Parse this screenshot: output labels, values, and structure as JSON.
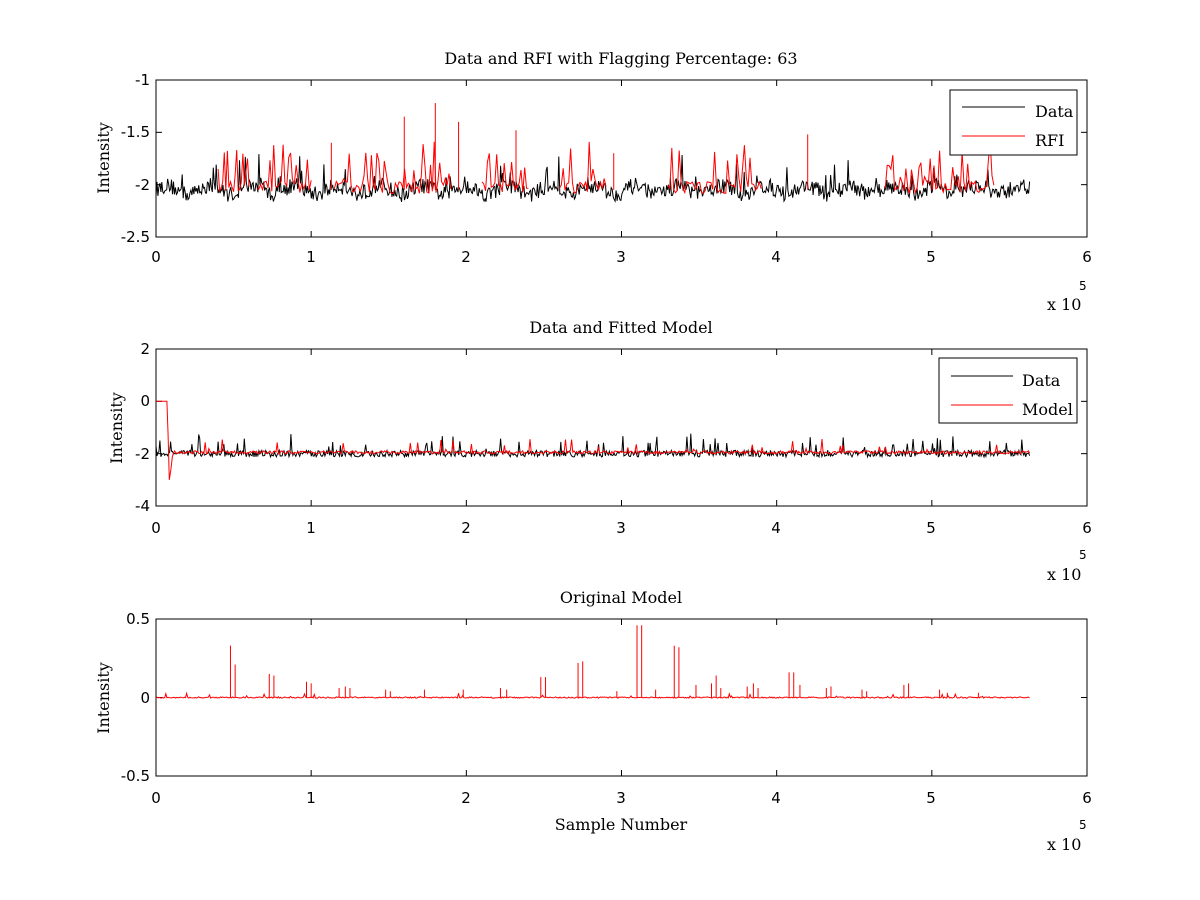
{
  "chart_data": [
    {
      "type": "line",
      "title": "Data and RFI with Flagging Percentage: 63",
      "xlabel": "",
      "ylabel": "Intensity",
      "xlim": [
        0,
        600000
      ],
      "ylim": [
        -2.5,
        -1
      ],
      "x_ticks": [
        0,
        1,
        2,
        3,
        4,
        5,
        6
      ],
      "x_tick_labels": [
        "0",
        "1",
        "2",
        "3",
        "4",
        "5",
        "6"
      ],
      "x_exponent_label": "x 10",
      "x_exponent_power": "5",
      "y_ticks": [
        -2.5,
        -2,
        -1.5,
        -1
      ],
      "y_tick_labels": [
        "-2.5",
        "-2",
        "-1.5",
        "-1"
      ],
      "grid": false,
      "legend_position": "top-right",
      "series": [
        {
          "name": "Data",
          "color": "#000000",
          "baseline": -2.05,
          "range": [
            0,
            563000
          ]
        },
        {
          "name": "RFI",
          "color": "#ff0000",
          "baseline": -2.05,
          "spikes": true,
          "range": [
            40000,
            540000
          ]
        }
      ],
      "rfi_segments": [
        [
          40000,
          60000
        ],
        [
          65000,
          100000
        ],
        [
          115000,
          190000
        ],
        [
          210000,
          240000
        ],
        [
          260000,
          290000
        ],
        [
          330000,
          390000
        ],
        [
          470000,
          540000
        ]
      ],
      "peaks": [
        {
          "x": 180000,
          "y": -1.22
        },
        {
          "x": 160000,
          "y": -1.35
        },
        {
          "x": 195000,
          "y": -1.4
        },
        {
          "x": 232000,
          "y": -1.48
        },
        {
          "x": 420000,
          "y": -1.52
        },
        {
          "x": 113000,
          "y": -1.6
        },
        {
          "x": 295000,
          "y": -1.7
        }
      ]
    },
    {
      "type": "line",
      "title": "Data and Fitted Model",
      "xlabel": "",
      "ylabel": "Intensity",
      "xlim": [
        0,
        600000
      ],
      "ylim": [
        -4,
        2
      ],
      "x_ticks": [
        0,
        1,
        2,
        3,
        4,
        5,
        6
      ],
      "x_tick_labels": [
        "0",
        "1",
        "2",
        "3",
        "4",
        "5",
        "6"
      ],
      "x_exponent_label": "x 10",
      "x_exponent_power": "5",
      "y_ticks": [
        -4,
        -2,
        0,
        2
      ],
      "y_tick_labels": [
        "-4",
        "-2",
        "0",
        "2"
      ],
      "grid": false,
      "legend_position": "top-right",
      "series": [
        {
          "name": "Data",
          "color": "#000000",
          "baseline": -2.0,
          "range": [
            0,
            563000
          ]
        },
        {
          "name": "Model",
          "color": "#ff0000",
          "baseline": -1.95,
          "initial_value": 0,
          "initial_until": 7000,
          "dip_min": -3.0,
          "range": [
            0,
            563000
          ]
        }
      ]
    },
    {
      "type": "line",
      "title": "Original Model",
      "xlabel": "Sample Number",
      "ylabel": "Intensity",
      "xlim": [
        0,
        600000
      ],
      "ylim": [
        -0.5,
        0.5
      ],
      "x_ticks": [
        0,
        1,
        2,
        3,
        4,
        5,
        6
      ],
      "x_tick_labels": [
        "0",
        "1",
        "2",
        "3",
        "4",
        "5",
        "6"
      ],
      "x_exponent_label": "x 10",
      "x_exponent_power": "5",
      "y_ticks": [
        -0.5,
        0,
        0.5
      ],
      "y_tick_labels": [
        "-0.5",
        "0",
        "0.5"
      ],
      "grid": false,
      "series": [
        {
          "color": "#ff0000",
          "baseline": 0.0,
          "range": [
            0,
            563000
          ]
        }
      ],
      "spikes": [
        {
          "x": 48000,
          "y": 0.33
        },
        {
          "x": 51000,
          "y": 0.21
        },
        {
          "x": 73000,
          "y": 0.15
        },
        {
          "x": 76000,
          "y": 0.14
        },
        {
          "x": 97000,
          "y": 0.1
        },
        {
          "x": 100000,
          "y": 0.09
        },
        {
          "x": 118000,
          "y": 0.06
        },
        {
          "x": 122000,
          "y": 0.07
        },
        {
          "x": 125000,
          "y": 0.06
        },
        {
          "x": 148000,
          "y": 0.05
        },
        {
          "x": 151000,
          "y": 0.04
        },
        {
          "x": 173000,
          "y": 0.05
        },
        {
          "x": 198000,
          "y": 0.05
        },
        {
          "x": 222000,
          "y": 0.06
        },
        {
          "x": 226000,
          "y": 0.05
        },
        {
          "x": 248000,
          "y": 0.13
        },
        {
          "x": 251000,
          "y": 0.13
        },
        {
          "x": 272000,
          "y": 0.22
        },
        {
          "x": 275000,
          "y": 0.23
        },
        {
          "x": 297000,
          "y": 0.04
        },
        {
          "x": 310000,
          "y": 0.46
        },
        {
          "x": 313000,
          "y": 0.46
        },
        {
          "x": 322000,
          "y": 0.05
        },
        {
          "x": 334000,
          "y": 0.33
        },
        {
          "x": 337000,
          "y": 0.32
        },
        {
          "x": 348000,
          "y": 0.08
        },
        {
          "x": 358000,
          "y": 0.09
        },
        {
          "x": 361000,
          "y": 0.14
        },
        {
          "x": 364000,
          "y": 0.06
        },
        {
          "x": 381000,
          "y": 0.07
        },
        {
          "x": 385000,
          "y": 0.09
        },
        {
          "x": 388000,
          "y": 0.06
        },
        {
          "x": 408000,
          "y": 0.16
        },
        {
          "x": 411000,
          "y": 0.16
        },
        {
          "x": 415000,
          "y": 0.08
        },
        {
          "x": 432000,
          "y": 0.06
        },
        {
          "x": 435000,
          "y": 0.07
        },
        {
          "x": 455000,
          "y": 0.05
        },
        {
          "x": 458000,
          "y": 0.04
        },
        {
          "x": 482000,
          "y": 0.08
        },
        {
          "x": 485000,
          "y": 0.09
        },
        {
          "x": 505000,
          "y": 0.05
        },
        {
          "x": 510000,
          "y": 0.03
        },
        {
          "x": 530000,
          "y": 0.03
        }
      ]
    }
  ]
}
